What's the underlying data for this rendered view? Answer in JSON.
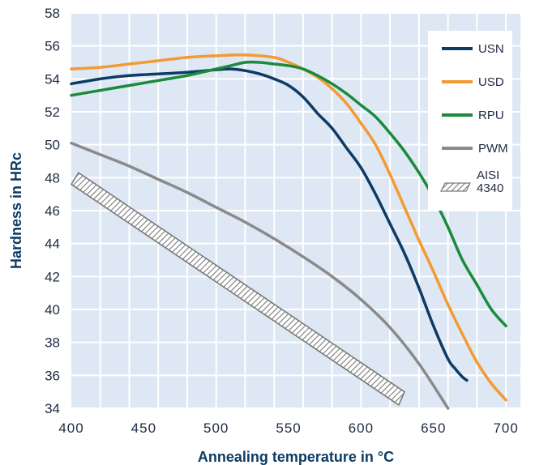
{
  "chart_data": {
    "type": "line",
    "title": "",
    "xlabel": "Annealing temperature in °C",
    "ylabel": "Hardness in HRc",
    "xlim": [
      400,
      710
    ],
    "ylim": [
      34,
      58
    ],
    "xticks": [
      "400",
      "450",
      "500",
      "550",
      "600",
      "650",
      "700"
    ],
    "yticks": [
      "34",
      "36",
      "38",
      "40",
      "42",
      "44",
      "46",
      "48",
      "50",
      "52",
      "54",
      "56",
      "58"
    ],
    "grid": true,
    "legend_position": "top-right",
    "series": [
      {
        "name": "USN",
        "color": "#0d3b66",
        "x": [
          400,
          420,
          440,
          460,
          480,
          500,
          510,
          520,
          530,
          540,
          550,
          560,
          570,
          580,
          590,
          600,
          610,
          620,
          630,
          640,
          650,
          660,
          665,
          670,
          673
        ],
        "y": [
          53.7,
          54.0,
          54.2,
          54.3,
          54.4,
          54.55,
          54.6,
          54.5,
          54.3,
          54.0,
          53.6,
          52.9,
          51.9,
          51.0,
          49.8,
          48.6,
          47.0,
          45.2,
          43.4,
          41.3,
          39.0,
          37.0,
          36.4,
          35.9,
          35.7
        ]
      },
      {
        "name": "USD",
        "color": "#f39a33",
        "x": [
          400,
          420,
          440,
          460,
          480,
          500,
          520,
          540,
          550,
          560,
          570,
          580,
          590,
          600,
          610,
          620,
          630,
          640,
          650,
          660,
          670,
          680,
          690,
          700
        ],
        "y": [
          54.6,
          54.7,
          54.9,
          55.1,
          55.3,
          55.4,
          55.45,
          55.3,
          55.0,
          54.6,
          54.1,
          53.4,
          52.5,
          51.3,
          50.0,
          48.2,
          46.2,
          44.2,
          42.3,
          40.3,
          38.5,
          36.8,
          35.5,
          34.5
        ]
      },
      {
        "name": "RPU",
        "color": "#1b8a3a",
        "x": [
          400,
          420,
          440,
          460,
          480,
          500,
          510,
          520,
          530,
          540,
          550,
          560,
          570,
          580,
          590,
          600,
          610,
          620,
          630,
          640,
          650,
          660,
          670,
          680,
          690,
          700
        ],
        "y": [
          53.0,
          53.3,
          53.6,
          53.9,
          54.2,
          54.6,
          54.8,
          55.0,
          55.0,
          54.9,
          54.8,
          54.6,
          54.2,
          53.7,
          53.1,
          52.4,
          51.7,
          50.7,
          49.6,
          48.3,
          46.8,
          45.0,
          43.0,
          41.5,
          40.0,
          39.0
        ]
      },
      {
        "name": "PWM",
        "color": "#8a8a8a",
        "x": [
          400,
          420,
          440,
          460,
          480,
          500,
          520,
          540,
          560,
          580,
          600,
          620,
          640,
          660
        ],
        "y": [
          50.1,
          49.4,
          48.7,
          47.9,
          47.1,
          46.2,
          45.3,
          44.3,
          43.2,
          42.0,
          40.6,
          38.9,
          36.7,
          34.0
        ]
      }
    ],
    "bands": [
      {
        "name": "AISI 4340",
        "pattern": "hatched",
        "color": "#7a7a7a",
        "upper_x": [
          405,
          630
        ],
        "upper_y": [
          48.3,
          35.0
        ],
        "lower_x": [
          400,
          626
        ],
        "lower_y": [
          47.6,
          34.2
        ]
      }
    ],
    "legend": [
      {
        "label": "USN",
        "color": "#0d3b66",
        "symbol": "line"
      },
      {
        "label": "USD",
        "color": "#f39a33",
        "symbol": "line"
      },
      {
        "label": "RPU",
        "color": "#1b8a3a",
        "symbol": "line"
      },
      {
        "label": "PWM",
        "color": "#8a8a8a",
        "symbol": "line"
      },
      {
        "label_lines": [
          "AISI",
          "4340"
        ],
        "color": "#7a7a7a",
        "symbol": "hatch"
      }
    ],
    "colors": {
      "plot_background": "#dde8f4",
      "grid": "#ffffff",
      "axis_text": "#1f2a44",
      "title_text": "#0d3b66"
    }
  }
}
